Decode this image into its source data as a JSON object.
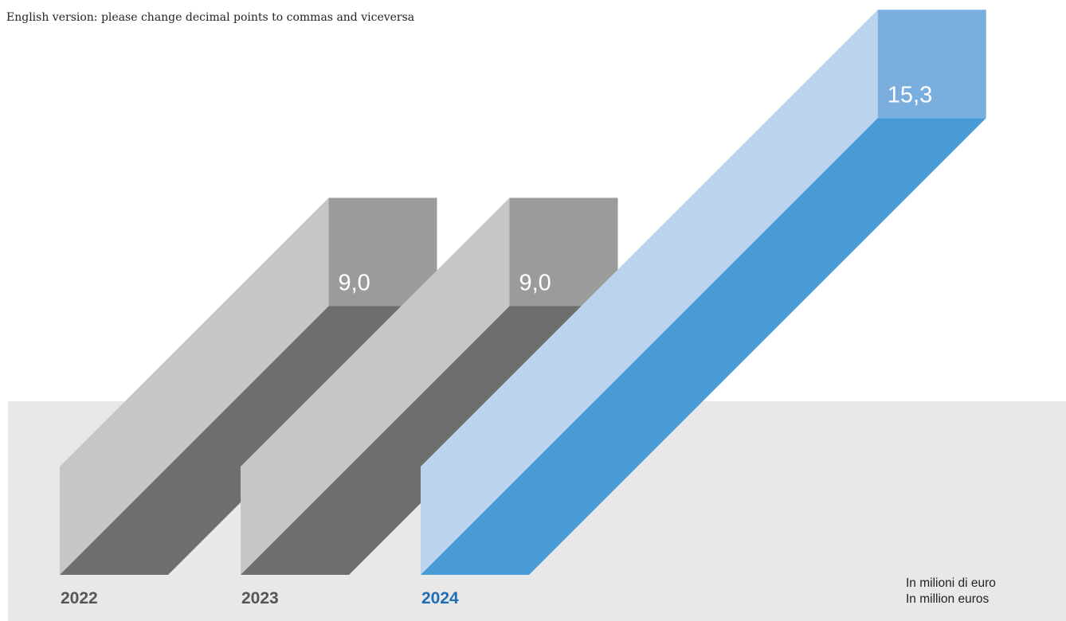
{
  "note": "English version: please change decimal points to commas and viceversa",
  "units": [
    "In milioni di euro",
    "In million euros"
  ],
  "chart_data": {
    "type": "bar",
    "categories": [
      "2022",
      "2023",
      "2024"
    ],
    "values": [
      9.0,
      9.0,
      15.3
    ],
    "value_labels": [
      "9,0",
      "9,0",
      "15,3"
    ],
    "highlight_category": "2024",
    "colors": {
      "default": {
        "top": "#9b9b9b",
        "front": "#6e6e6e",
        "side": "#c6c6c6",
        "label": "#555555"
      },
      "highlight": {
        "top": "#7aaede",
        "front": "#489bd5",
        "side": "#bcd3ee",
        "label": "#1f6eb5"
      },
      "floor": "#e8e8e8"
    },
    "style": "3d-diagonal-bars"
  }
}
